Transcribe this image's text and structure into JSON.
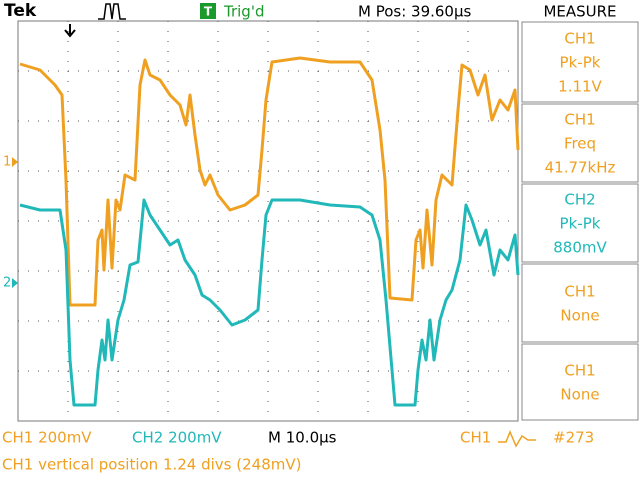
{
  "header": {
    "brand": "Tek",
    "trigger_badge": "T",
    "trigger_status": "Trig'd",
    "position": "M Pos: 39.60µs"
  },
  "measure": {
    "title": "MEASURE",
    "items": [
      {
        "source": "CH1",
        "type": "Pk-Pk",
        "value": "1.11V"
      },
      {
        "source": "CH1",
        "type": "Freq",
        "value": "41.77kHz"
      },
      {
        "source": "CH2",
        "type": "Pk-Pk",
        "value": "880mV"
      },
      {
        "source": "CH1",
        "type": "None"
      },
      {
        "source": "CH1",
        "type": "None"
      }
    ]
  },
  "markers": [
    "1",
    "2"
  ],
  "footer": {
    "ch1_scale": "CH1  200mV",
    "ch2_scale": "CH2  200mV",
    "timebase": "M 10.0µs",
    "trigger_source": "CH1",
    "count": "#273",
    "message": "CH1 vertical position 1.24 divs (248mV)"
  }
}
